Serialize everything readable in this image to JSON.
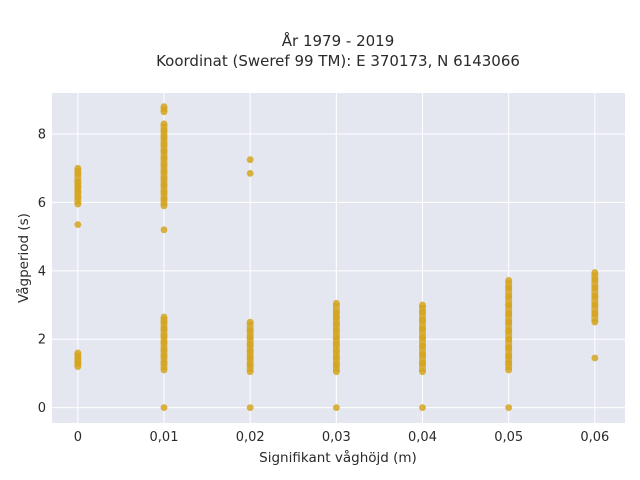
{
  "chart_data": {
    "type": "scatter",
    "title_line1": "År 1979 - 2019",
    "title_line2": "Koordinat (Sweref 99 TM): E 370173, N 6143066",
    "xlabel": "Signifikant våghöjd (m)",
    "ylabel": "Vågperiod (s)",
    "xlim": [
      -0.003,
      0.0635
    ],
    "ylim": [
      -0.45,
      9.2
    ],
    "x_ticks": [
      0,
      0.01,
      0.02,
      0.03,
      0.04,
      0.05,
      0.06
    ],
    "x_tick_labels": [
      "0",
      "0,01",
      "0,02",
      "0,03",
      "0,04",
      "0,05",
      "0,06"
    ],
    "y_ticks": [
      0,
      2,
      4,
      6,
      8
    ],
    "y_tick_labels": [
      "0",
      "2",
      "4",
      "6",
      "8"
    ],
    "grid": true,
    "background_color": "#e5e7f0",
    "marker_color": "#d4a41f",
    "points": [
      {
        "x": 0,
        "y": 1.2
      },
      {
        "x": 0,
        "y": 1.3
      },
      {
        "x": 0,
        "y": 1.4
      },
      {
        "x": 0,
        "y": 1.5
      },
      {
        "x": 0,
        "y": 1.6
      },
      {
        "x": 0,
        "y": 5.35
      },
      {
        "x": 0,
        "y": 5.95
      },
      {
        "x": 0,
        "y": 6.15
      },
      {
        "x": 0,
        "y": 6.3
      },
      {
        "x": 0,
        "y": 6.45
      },
      {
        "x": 0,
        "y": 6.6
      },
      {
        "x": 0,
        "y": 6.85
      },
      {
        "x": 0,
        "y": 7.0
      },
      {
        "x": 0.01,
        "y": 0.0
      },
      {
        "x": 0.01,
        "y": 1.1
      },
      {
        "x": 0.01,
        "y": 1.3
      },
      {
        "x": 0.01,
        "y": 1.5
      },
      {
        "x": 0.01,
        "y": 1.7
      },
      {
        "x": 0.01,
        "y": 1.9
      },
      {
        "x": 0.01,
        "y": 2.1
      },
      {
        "x": 0.01,
        "y": 2.3
      },
      {
        "x": 0.01,
        "y": 2.5
      },
      {
        "x": 0.01,
        "y": 2.65
      },
      {
        "x": 0.01,
        "y": 5.2
      },
      {
        "x": 0.01,
        "y": 5.9
      },
      {
        "x": 0.01,
        "y": 6.1
      },
      {
        "x": 0.01,
        "y": 6.3
      },
      {
        "x": 0.01,
        "y": 6.5
      },
      {
        "x": 0.01,
        "y": 6.7
      },
      {
        "x": 0.01,
        "y": 6.9
      },
      {
        "x": 0.01,
        "y": 7.1
      },
      {
        "x": 0.01,
        "y": 7.3
      },
      {
        "x": 0.01,
        "y": 7.5
      },
      {
        "x": 0.01,
        "y": 7.7
      },
      {
        "x": 0.01,
        "y": 7.9
      },
      {
        "x": 0.01,
        "y": 8.1
      },
      {
        "x": 0.01,
        "y": 8.3
      },
      {
        "x": 0.01,
        "y": 8.65
      },
      {
        "x": 0.01,
        "y": 8.8
      },
      {
        "x": 0.02,
        "y": 0.0
      },
      {
        "x": 0.02,
        "y": 1.05
      },
      {
        "x": 0.02,
        "y": 1.25
      },
      {
        "x": 0.02,
        "y": 1.45
      },
      {
        "x": 0.02,
        "y": 1.65
      },
      {
        "x": 0.02,
        "y": 1.85
      },
      {
        "x": 0.02,
        "y": 2.05
      },
      {
        "x": 0.02,
        "y": 2.25
      },
      {
        "x": 0.02,
        "y": 2.5
      },
      {
        "x": 0.02,
        "y": 6.85
      },
      {
        "x": 0.02,
        "y": 7.25
      },
      {
        "x": 0.03,
        "y": 0.0
      },
      {
        "x": 0.03,
        "y": 1.05
      },
      {
        "x": 0.03,
        "y": 1.25
      },
      {
        "x": 0.03,
        "y": 1.45
      },
      {
        "x": 0.03,
        "y": 1.65
      },
      {
        "x": 0.03,
        "y": 1.85
      },
      {
        "x": 0.03,
        "y": 2.05
      },
      {
        "x": 0.03,
        "y": 2.25
      },
      {
        "x": 0.03,
        "y": 2.45
      },
      {
        "x": 0.03,
        "y": 2.65
      },
      {
        "x": 0.03,
        "y": 2.8
      },
      {
        "x": 0.03,
        "y": 3.05
      },
      {
        "x": 0.04,
        "y": 0.0
      },
      {
        "x": 0.04,
        "y": 1.05
      },
      {
        "x": 0.04,
        "y": 1.3
      },
      {
        "x": 0.04,
        "y": 1.55
      },
      {
        "x": 0.04,
        "y": 1.8
      },
      {
        "x": 0.04,
        "y": 2.05
      },
      {
        "x": 0.04,
        "y": 2.3
      },
      {
        "x": 0.04,
        "y": 2.55
      },
      {
        "x": 0.04,
        "y": 2.8
      },
      {
        "x": 0.04,
        "y": 3.0
      },
      {
        "x": 0.05,
        "y": 0.0
      },
      {
        "x": 0.05,
        "y": 1.1
      },
      {
        "x": 0.05,
        "y": 1.3
      },
      {
        "x": 0.05,
        "y": 1.5
      },
      {
        "x": 0.05,
        "y": 1.75
      },
      {
        "x": 0.05,
        "y": 2.0
      },
      {
        "x": 0.05,
        "y": 2.25
      },
      {
        "x": 0.05,
        "y": 2.5
      },
      {
        "x": 0.05,
        "y": 2.75
      },
      {
        "x": 0.05,
        "y": 3.0
      },
      {
        "x": 0.05,
        "y": 3.25
      },
      {
        "x": 0.05,
        "y": 3.5
      },
      {
        "x": 0.05,
        "y": 3.72
      },
      {
        "x": 0.06,
        "y": 1.45
      },
      {
        "x": 0.06,
        "y": 2.5
      },
      {
        "x": 0.06,
        "y": 2.75
      },
      {
        "x": 0.06,
        "y": 3.0
      },
      {
        "x": 0.06,
        "y": 3.25
      },
      {
        "x": 0.06,
        "y": 3.5
      },
      {
        "x": 0.06,
        "y": 3.75
      },
      {
        "x": 0.06,
        "y": 3.95
      }
    ]
  }
}
